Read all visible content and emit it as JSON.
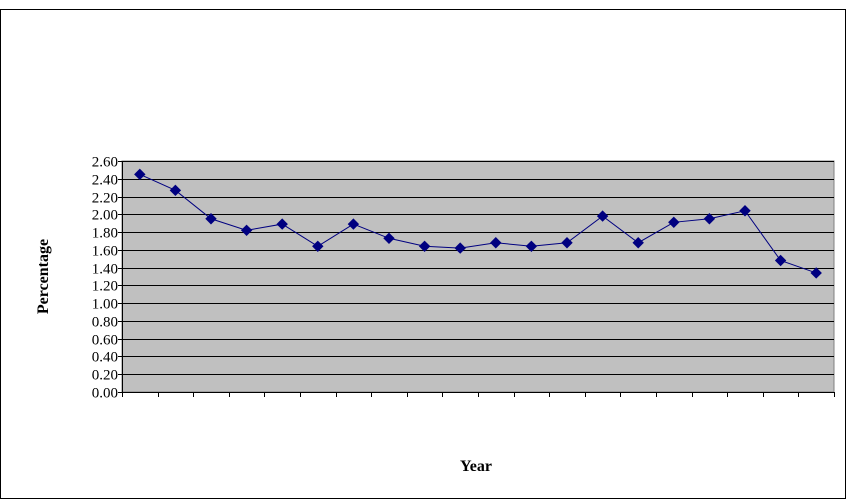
{
  "caption": "",
  "chart_data": {
    "type": "line",
    "title": "",
    "xlabel": "Year",
    "ylabel": "Percentage",
    "ylim": [
      0,
      2.6
    ],
    "ytick_step": 0.2,
    "y_tick_labels": [
      "0.00",
      "0.20",
      "0.40",
      "0.60",
      "0.80",
      "1.00",
      "1.20",
      "1.40",
      "1.60",
      "1.80",
      "2.00",
      "2.20",
      "2.40",
      "2.60"
    ],
    "x_tick_labels": [],
    "grid": "horizontal",
    "legend": "none",
    "series": [
      {
        "values": [
          2.45,
          2.27,
          1.95,
          1.82,
          1.89,
          1.64,
          1.89,
          1.73,
          1.64,
          1.62,
          1.68,
          1.64,
          1.68,
          1.98,
          1.68,
          1.91,
          1.95,
          2.04,
          1.48,
          1.34
        ]
      }
    ],
    "colors": {
      "plot_bg": "#c0c0c0",
      "line": "#000080",
      "marker": "#000080",
      "grid": "#000000"
    }
  }
}
